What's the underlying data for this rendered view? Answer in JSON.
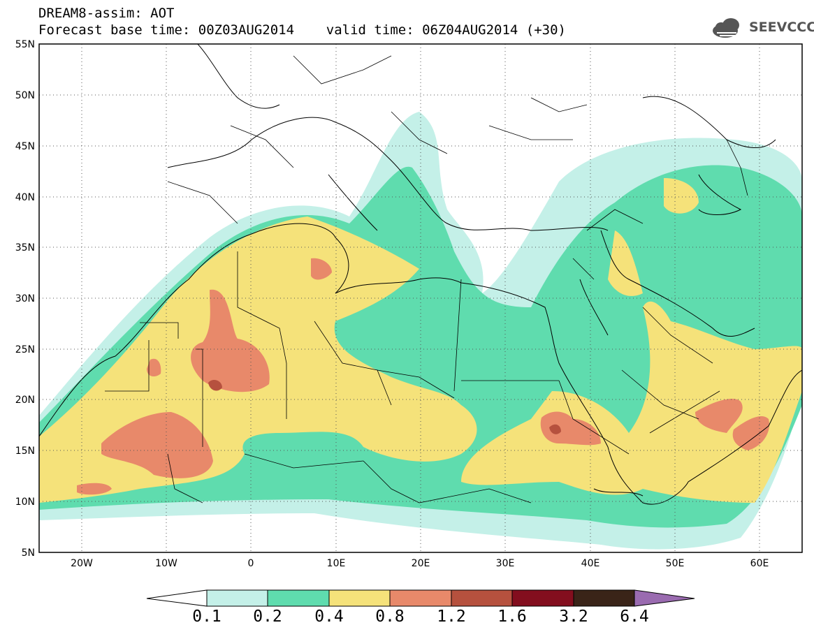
{
  "header": {
    "line1": "DREAM8-assim: AOT",
    "line2": "Forecast base time: 00Z03AUG2014    valid time: 06Z04AUG2014 (+30)"
  },
  "logo": {
    "text": "SEEVCCC",
    "icon": "cloud-icon"
  },
  "map": {
    "lon_range": [
      -25,
      65
    ],
    "lat_range": [
      5,
      55
    ],
    "lat_ticks": [
      "55N",
      "50N",
      "45N",
      "40N",
      "35N",
      "30N",
      "25N",
      "20N",
      "15N",
      "10N",
      "5N"
    ],
    "lon_ticks": [
      "20W",
      "10W",
      "0",
      "10E",
      "20E",
      "30E",
      "40E",
      "50E",
      "60E"
    ],
    "grid": "dotted"
  },
  "colorbar": {
    "labels": [
      "0.1",
      "0.2",
      "0.4",
      "0.8",
      "1.2",
      "1.6",
      "3.2",
      "6.4"
    ],
    "colors": [
      "#c4f0e8",
      "#5fdcae",
      "#f5e27a",
      "#e8896a",
      "#b6513e",
      "#830e1e",
      "#3a2418",
      "#9a6bb0"
    ]
  },
  "colors": {
    "c1": "#c4f0e8",
    "c2": "#5fdcae",
    "c3": "#f5e27a",
    "c4": "#e8896a",
    "c5": "#b6513e"
  }
}
